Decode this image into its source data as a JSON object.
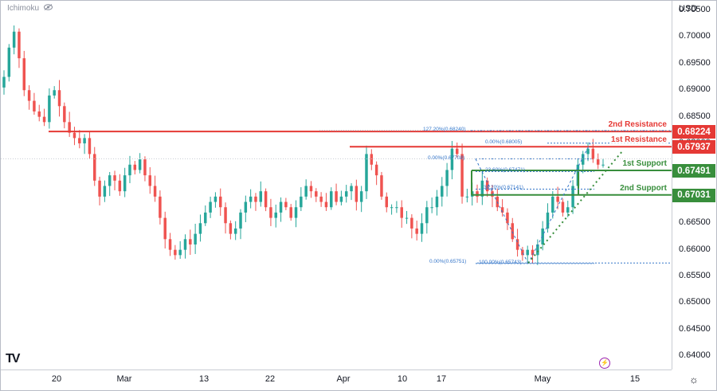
{
  "indicator_label": "Ichimoku",
  "currency": "USD",
  "logo_text": "TV",
  "settings_glyph": "☼",
  "bolt_glyph": "⚡",
  "colors": {
    "up": "#26a69a",
    "down": "#ef5350",
    "resistance": "#e53935",
    "support": "#388e3c",
    "fib": "#3576c9"
  },
  "chart_data": {
    "type": "candlestick",
    "y_ticks": [
      "0.70500",
      "0.70000",
      "0.69500",
      "0.69000",
      "0.68500",
      "0.68000",
      "0.67500",
      "0.67000",
      "0.66500",
      "0.66000",
      "0.65500",
      "0.65000",
      "0.64500",
      "0.64000"
    ],
    "x_ticks": [
      "20",
      "Mar",
      "13",
      "22",
      "Apr",
      "10",
      "17",
      "May",
      "15"
    ],
    "ylim": [
      0.6375,
      0.7068
    ],
    "levels": [
      {
        "name": "2nd Resistance",
        "value": 0.68224,
        "label": "0.68224",
        "kind": "resistance"
      },
      {
        "name": "1st Resistance",
        "value": 0.67937,
        "label": "0.67937",
        "kind": "resistance"
      },
      {
        "name": "1st Support",
        "value": 0.67491,
        "label": "0.67491",
        "kind": "support"
      },
      {
        "name": "2nd Support",
        "value": 0.67031,
        "label": "0.67031",
        "kind": "support"
      }
    ],
    "fib_left": [
      {
        "text": "0.00%(0.67708)",
        "value": 0.67708
      },
      {
        "text": "23.60%(0.67471)",
        "value": 0.67471
      },
      {
        "text": "38.20%(0.67141)",
        "value": 0.67141
      },
      {
        "text": "100.00%(0.65743)",
        "value": 0.65743
      }
    ],
    "fib_right": [
      {
        "text": "127.20%(0.68240)",
        "value": 0.6824
      },
      {
        "text": "0.00%(0.68005)",
        "value": 0.68005
      },
      {
        "text": "0.00%(0.65751)",
        "value": 0.65751
      }
    ],
    "close_path": [
      0.6925,
      0.698,
      0.701,
      0.696,
      0.69,
      0.688,
      0.686,
      0.685,
      0.684,
      0.689,
      0.69,
      0.687,
      0.684,
      0.682,
      0.681,
      0.68,
      0.681,
      0.678,
      0.673,
      0.67,
      0.672,
      0.674,
      0.673,
      0.671,
      0.674,
      0.676,
      0.675,
      0.677,
      0.674,
      0.672,
      0.67,
      0.666,
      0.662,
      0.66,
      0.659,
      0.66,
      0.662,
      0.661,
      0.663,
      0.665,
      0.667,
      0.669,
      0.67,
      0.668,
      0.665,
      0.663,
      0.664,
      0.667,
      0.669,
      0.67,
      0.669,
      0.671,
      0.668,
      0.666,
      0.667,
      0.669,
      0.668,
      0.666,
      0.668,
      0.67,
      0.672,
      0.671,
      0.67,
      0.669,
      0.668,
      0.671,
      0.669,
      0.67,
      0.671,
      0.672,
      0.669,
      0.671,
      0.678,
      0.676,
      0.674,
      0.67,
      0.668,
      0.668,
      0.668,
      0.666,
      0.666,
      0.664,
      0.663,
      0.665,
      0.668,
      0.668,
      0.67,
      0.672,
      0.675,
      0.679,
      0.678,
      0.67,
      0.67,
      0.671,
      0.67,
      0.673,
      0.671,
      0.67,
      0.668,
      0.667,
      0.665,
      0.662,
      0.66,
      0.659,
      0.66,
      0.659,
      0.661,
      0.664,
      0.667,
      0.67,
      0.669,
      0.667,
      0.668,
      0.672,
      0.676,
      0.678,
      0.679,
      0.677,
      0.676,
      0.676
    ],
    "pivots": [
      {
        "value": 0.6825,
        "label_at": "0.68224"
      },
      {
        "value": 0.6575,
        "label_at": "0.65751"
      }
    ]
  }
}
